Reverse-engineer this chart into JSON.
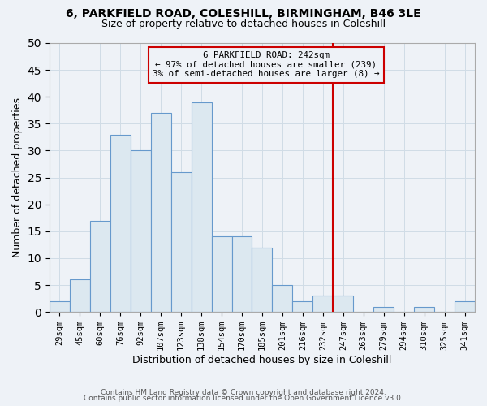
{
  "title1": "6, PARKFIELD ROAD, COLESHILL, BIRMINGHAM, B46 3LE",
  "title2": "Size of property relative to detached houses in Coleshill",
  "xlabel": "Distribution of detached houses by size in Coleshill",
  "ylabel": "Number of detached properties",
  "bin_labels": [
    "29sqm",
    "45sqm",
    "60sqm",
    "76sqm",
    "92sqm",
    "107sqm",
    "123sqm",
    "138sqm",
    "154sqm",
    "170sqm",
    "185sqm",
    "201sqm",
    "216sqm",
    "232sqm",
    "247sqm",
    "263sqm",
    "279sqm",
    "294sqm",
    "310sqm",
    "325sqm",
    "341sqm"
  ],
  "bar_heights": [
    2,
    6,
    17,
    33,
    30,
    37,
    26,
    39,
    14,
    14,
    12,
    5,
    2,
    3,
    3,
    0,
    1,
    0,
    1,
    0,
    2
  ],
  "bar_color": "#dce8f0",
  "bar_edge_color": "#6699cc",
  "grid_color": "#d0dce6",
  "vline_x_idx": 14,
  "vline_color": "#cc0000",
  "annotation_title": "6 PARKFIELD ROAD: 242sqm",
  "annotation_line1": "← 97% of detached houses are smaller (239)",
  "annotation_line2": "3% of semi-detached houses are larger (8) →",
  "ylim": [
    0,
    50
  ],
  "yticks": [
    0,
    5,
    10,
    15,
    20,
    25,
    30,
    35,
    40,
    45,
    50
  ],
  "footer1": "Contains HM Land Registry data © Crown copyright and database right 2024.",
  "footer2": "Contains public sector information licensed under the Open Government Licence v3.0.",
  "bg_color": "#eef2f7"
}
